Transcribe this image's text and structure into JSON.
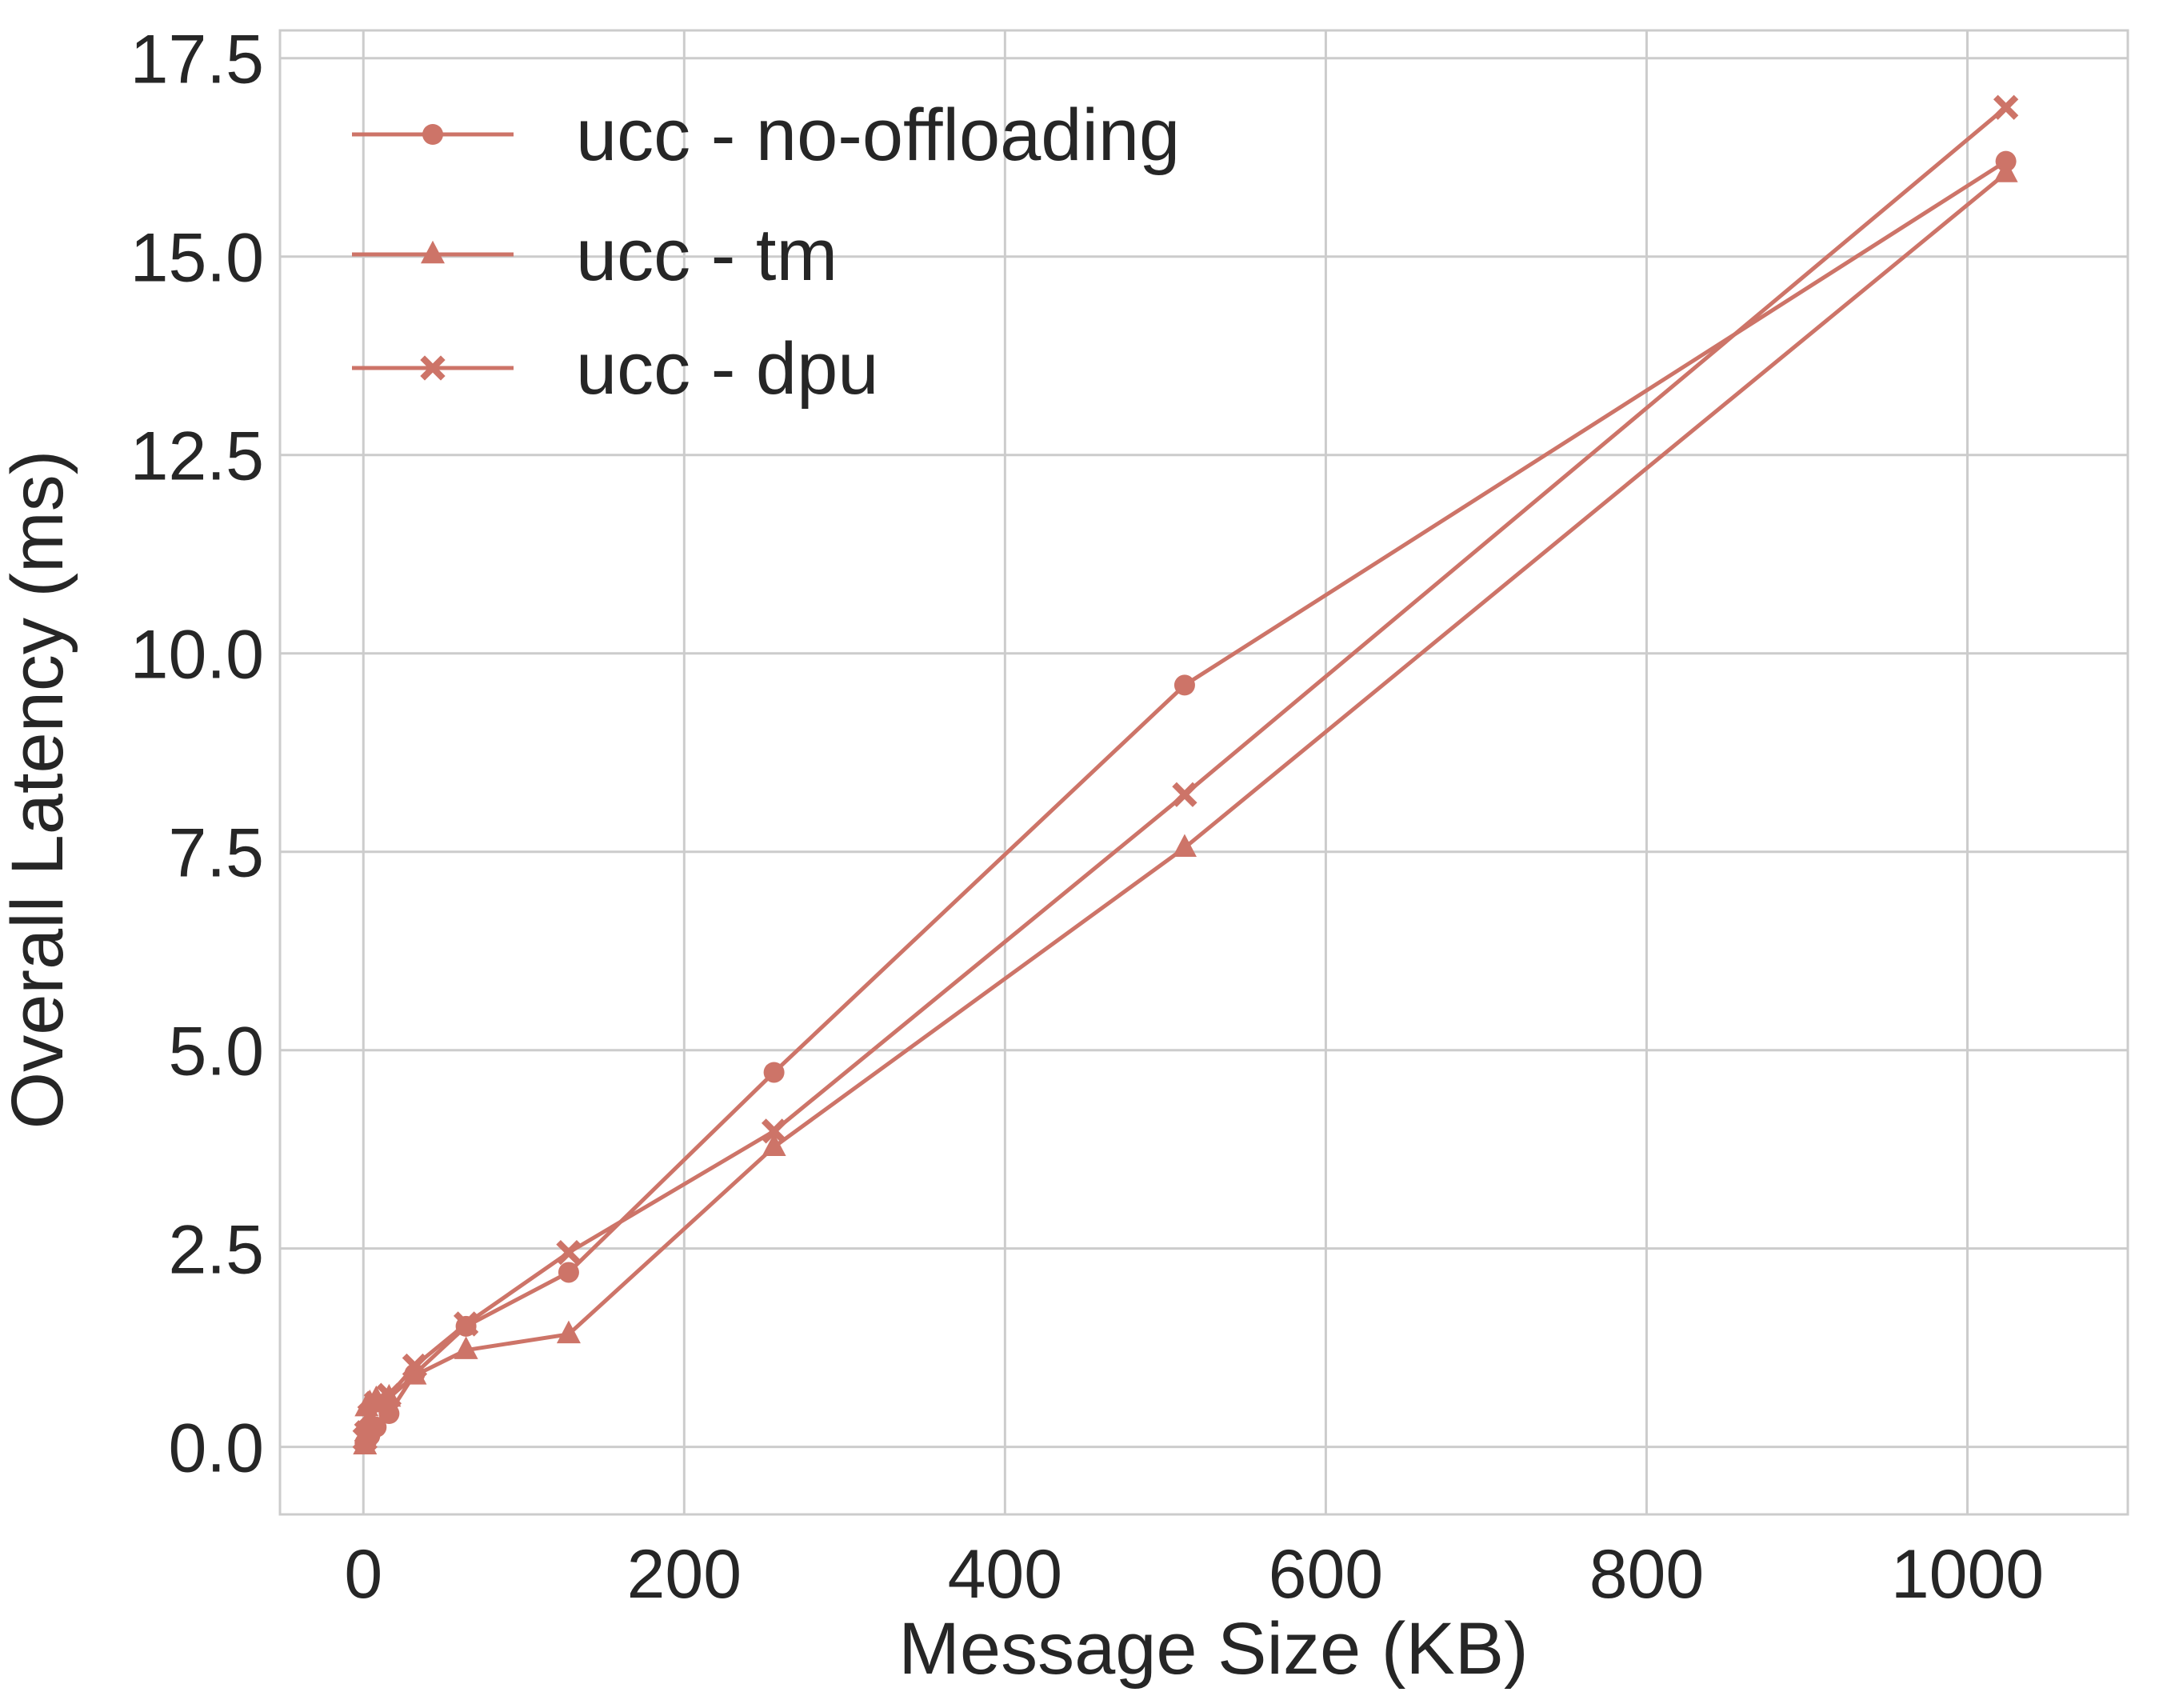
{
  "chart_data": {
    "type": "line",
    "title": "",
    "xlabel": "Message Size (KB)",
    "ylabel": "Overall Latency (ms)",
    "xlim": [
      -52,
      1100
    ],
    "ylim": [
      -0.85,
      17.85
    ],
    "xticks": [
      0,
      200,
      400,
      600,
      800,
      1000
    ],
    "xtick_labels": [
      "0",
      "200",
      "400",
      "600",
      "800",
      "1000"
    ],
    "yticks": [
      0,
      2.5,
      5,
      7.5,
      10,
      12.5,
      15,
      17.5
    ],
    "ytick_labels": [
      "0.0",
      "2.5",
      "5.0",
      "7.5",
      "10.0",
      "12.5",
      "15.0",
      "17.5"
    ],
    "grid": true,
    "legend_position": "top-left",
    "color": "#cd7468",
    "series": [
      {
        "name": "ucc - no-offloading",
        "marker": "circle",
        "x": [
          1,
          2,
          4,
          8,
          16,
          32,
          64,
          128,
          256,
          512,
          1024
        ],
        "y": [
          0.05,
          0.08,
          0.14,
          0.25,
          0.42,
          0.92,
          1.52,
          2.2,
          4.72,
          9.6,
          16.2
        ]
      },
      {
        "name": "ucc - tm",
        "marker": "triangle",
        "x": [
          1,
          2,
          4,
          8,
          16,
          32,
          64,
          128,
          256,
          512,
          1024
        ],
        "y": [
          0.02,
          0.5,
          0.55,
          0.6,
          0.62,
          0.9,
          1.22,
          1.42,
          3.78,
          7.55,
          16.05
        ]
      },
      {
        "name": "ucc - dpu",
        "marker": "x",
        "x": [
          1,
          2,
          4,
          8,
          16,
          32,
          64,
          128,
          256,
          512,
          1024
        ],
        "y": [
          0.1,
          0.18,
          0.4,
          0.55,
          0.65,
          1.02,
          1.55,
          2.45,
          3.98,
          8.22,
          16.88
        ]
      }
    ]
  }
}
